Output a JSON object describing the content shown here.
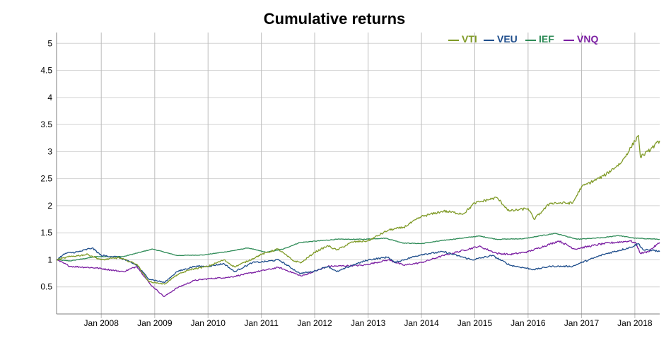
{
  "chart_data": {
    "type": "line",
    "title": "Cumulative returns",
    "xlabel": "",
    "ylabel": "",
    "ylim": [
      0,
      5.2
    ],
    "y_ticks": [
      "0.5",
      "1",
      "1.5",
      "2",
      "2.5",
      "3",
      "3.5",
      "4",
      "4.5",
      "5"
    ],
    "x_range": [
      "2007-03-01",
      "2018-06-20"
    ],
    "x_ticks": [
      "Jan 2008",
      "Jan 2009",
      "Jan 2010",
      "Jan 2011",
      "Jan 2012",
      "Jan 2013",
      "Jan 2014",
      "Jan 2015",
      "Jan 2016",
      "Jan 2017",
      "Jan 2018"
    ],
    "grid": true,
    "legend_position": "top-right",
    "series": [
      {
        "name": "VTI",
        "color": "#7f9a26",
        "points": [
          [
            "2007-03-01",
            1.0
          ],
          [
            "2007-06-01",
            1.06
          ],
          [
            "2007-10-01",
            1.1
          ],
          [
            "2008-01-01",
            1.0
          ],
          [
            "2008-05-01",
            1.04
          ],
          [
            "2008-09-01",
            0.92
          ],
          [
            "2008-11-20",
            0.6
          ],
          [
            "2009-03-09",
            0.55
          ],
          [
            "2009-06-01",
            0.72
          ],
          [
            "2009-09-01",
            0.82
          ],
          [
            "2010-01-01",
            0.88
          ],
          [
            "2010-04-20",
            1.0
          ],
          [
            "2010-07-01",
            0.87
          ],
          [
            "2010-10-01",
            0.98
          ],
          [
            "2011-01-01",
            1.1
          ],
          [
            "2011-04-25",
            1.2
          ],
          [
            "2011-08-10",
            0.98
          ],
          [
            "2011-10-03",
            0.95
          ],
          [
            "2012-01-01",
            1.14
          ],
          [
            "2012-04-01",
            1.26
          ],
          [
            "2012-06-01",
            1.18
          ],
          [
            "2012-09-15",
            1.33
          ],
          [
            "2013-01-01",
            1.35
          ],
          [
            "2013-05-20",
            1.55
          ],
          [
            "2013-09-01",
            1.6
          ],
          [
            "2014-01-01",
            1.8
          ],
          [
            "2014-06-01",
            1.9
          ],
          [
            "2014-10-15",
            1.85
          ],
          [
            "2015-01-01",
            2.05
          ],
          [
            "2015-06-01",
            2.15
          ],
          [
            "2015-08-25",
            1.9
          ],
          [
            "2016-01-01",
            1.95
          ],
          [
            "2016-02-11",
            1.75
          ],
          [
            "2016-06-01",
            2.05
          ],
          [
            "2016-11-01",
            2.05
          ],
          [
            "2017-01-01",
            2.35
          ],
          [
            "2017-06-01",
            2.55
          ],
          [
            "2017-10-01",
            2.8
          ],
          [
            "2018-01-26",
            3.3
          ],
          [
            "2018-02-08",
            2.9
          ],
          [
            "2018-04-01",
            3.0
          ],
          [
            "2018-06-20",
            3.2
          ]
        ]
      },
      {
        "name": "VEU",
        "color": "#1f4e8c",
        "points": [
          [
            "2007-03-01",
            1.0
          ],
          [
            "2007-05-01",
            1.12
          ],
          [
            "2007-08-01",
            1.15
          ],
          [
            "2007-10-31",
            1.22
          ],
          [
            "2008-01-01",
            1.08
          ],
          [
            "2008-05-01",
            1.05
          ],
          [
            "2008-09-01",
            0.9
          ],
          [
            "2008-11-20",
            0.65
          ],
          [
            "2009-03-09",
            0.58
          ],
          [
            "2009-06-01",
            0.78
          ],
          [
            "2009-10-01",
            0.88
          ],
          [
            "2010-01-01",
            0.88
          ],
          [
            "2010-04-20",
            0.93
          ],
          [
            "2010-07-01",
            0.78
          ],
          [
            "2010-11-01",
            0.95
          ],
          [
            "2011-01-01",
            0.96
          ],
          [
            "2011-05-01",
            1.0
          ],
          [
            "2011-09-20",
            0.75
          ],
          [
            "2011-12-15",
            0.78
          ],
          [
            "2012-04-01",
            0.88
          ],
          [
            "2012-06-01",
            0.78
          ],
          [
            "2012-09-15",
            0.9
          ],
          [
            "2013-01-01",
            1.0
          ],
          [
            "2013-05-20",
            1.05
          ],
          [
            "2013-07-01",
            0.95
          ],
          [
            "2014-01-01",
            1.1
          ],
          [
            "2014-06-01",
            1.15
          ],
          [
            "2014-12-15",
            1.0
          ],
          [
            "2015-05-01",
            1.08
          ],
          [
            "2015-09-01",
            0.9
          ],
          [
            "2016-02-11",
            0.82
          ],
          [
            "2016-06-01",
            0.88
          ],
          [
            "2016-11-01",
            0.88
          ],
          [
            "2017-01-01",
            0.95
          ],
          [
            "2017-06-01",
            1.1
          ],
          [
            "2017-12-01",
            1.23
          ],
          [
            "2018-01-26",
            1.3
          ],
          [
            "2018-03-01",
            1.18
          ],
          [
            "2018-05-01",
            1.18
          ],
          [
            "2018-06-20",
            1.15
          ]
        ]
      },
      {
        "name": "IEF",
        "color": "#2e8b57",
        "points": [
          [
            "2007-03-01",
            1.0
          ],
          [
            "2007-06-01",
            0.98
          ],
          [
            "2007-12-01",
            1.06
          ],
          [
            "2008-06-01",
            1.06
          ],
          [
            "2008-12-18",
            1.2
          ],
          [
            "2009-06-01",
            1.08
          ],
          [
            "2009-12-01",
            1.09
          ],
          [
            "2010-06-01",
            1.16
          ],
          [
            "2010-10-01",
            1.22
          ],
          [
            "2011-02-01",
            1.14
          ],
          [
            "2011-06-01",
            1.2
          ],
          [
            "2011-09-20",
            1.32
          ],
          [
            "2012-06-01",
            1.38
          ],
          [
            "2012-12-01",
            1.38
          ],
          [
            "2013-04-30",
            1.4
          ],
          [
            "2013-09-01",
            1.31
          ],
          [
            "2014-01-01",
            1.3
          ],
          [
            "2014-06-01",
            1.36
          ],
          [
            "2015-02-01",
            1.44
          ],
          [
            "2015-06-01",
            1.38
          ],
          [
            "2015-12-01",
            1.39
          ],
          [
            "2016-07-06",
            1.49
          ],
          [
            "2016-12-01",
            1.38
          ],
          [
            "2017-06-01",
            1.41
          ],
          [
            "2017-09-08",
            1.45
          ],
          [
            "2018-01-01",
            1.4
          ],
          [
            "2018-06-20",
            1.38
          ]
        ]
      },
      {
        "name": "VNQ",
        "color": "#7b1fa2",
        "points": [
          [
            "2007-03-01",
            1.0
          ],
          [
            "2007-06-01",
            0.88
          ],
          [
            "2007-12-01",
            0.85
          ],
          [
            "2008-06-01",
            0.78
          ],
          [
            "2008-09-01",
            0.88
          ],
          [
            "2008-12-01",
            0.55
          ],
          [
            "2009-03-06",
            0.32
          ],
          [
            "2009-06-01",
            0.48
          ],
          [
            "2009-10-01",
            0.62
          ],
          [
            "2010-01-01",
            0.65
          ],
          [
            "2010-06-01",
            0.68
          ],
          [
            "2010-12-01",
            0.78
          ],
          [
            "2011-05-01",
            0.86
          ],
          [
            "2011-10-03",
            0.7
          ],
          [
            "2012-04-01",
            0.88
          ],
          [
            "2012-12-01",
            0.9
          ],
          [
            "2013-05-20",
            1.0
          ],
          [
            "2013-09-01",
            0.9
          ],
          [
            "2014-01-01",
            0.95
          ],
          [
            "2014-06-01",
            1.08
          ],
          [
            "2015-01-30",
            1.25
          ],
          [
            "2015-06-01",
            1.12
          ],
          [
            "2015-09-01",
            1.1
          ],
          [
            "2016-01-01",
            1.15
          ],
          [
            "2016-07-31",
            1.35
          ],
          [
            "2016-11-15",
            1.2
          ],
          [
            "2017-06-01",
            1.3
          ],
          [
            "2017-12-01",
            1.35
          ],
          [
            "2018-01-10",
            1.3
          ],
          [
            "2018-02-08",
            1.12
          ],
          [
            "2018-04-01",
            1.15
          ],
          [
            "2018-06-20",
            1.32
          ]
        ]
      }
    ]
  }
}
